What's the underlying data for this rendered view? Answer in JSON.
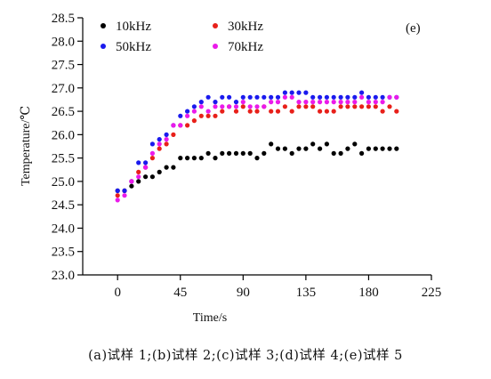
{
  "chart_data": {
    "type": "scatter",
    "panel_label": "(e)",
    "xlabel": "Time/s",
    "ylabel": "Temperature/℃",
    "xlim": [
      -25,
      225
    ],
    "ylim": [
      23.0,
      28.5
    ],
    "xticks": [
      0,
      45,
      90,
      135,
      180,
      225
    ],
    "yticks": [
      23.0,
      23.5,
      24.0,
      24.5,
      25.0,
      25.5,
      26.0,
      26.5,
      27.0,
      27.5,
      28.0,
      28.5
    ],
    "ytick_labels": [
      "23.0",
      "23.5",
      "24.0",
      "24.5",
      "25.0",
      "25.5",
      "26.0",
      "26.5",
      "27.0",
      "27.5",
      "28.0",
      "28.5"
    ],
    "legend_position": "top-left",
    "grid": false,
    "x": [
      0,
      5,
      10,
      15,
      20,
      25,
      30,
      35,
      40,
      45,
      50,
      55,
      60,
      65,
      70,
      75,
      80,
      85,
      90,
      95,
      100,
      105,
      110,
      115,
      120,
      125,
      130,
      135,
      140,
      145,
      150,
      155,
      160,
      165,
      170,
      175,
      180,
      185,
      190,
      195,
      200
    ],
    "series": [
      {
        "name": "10kHz",
        "color": "#000000",
        "values": [
          24.8,
          24.8,
          24.9,
          25.0,
          25.1,
          25.1,
          25.2,
          25.3,
          25.3,
          25.5,
          25.5,
          25.5,
          25.5,
          25.6,
          25.5,
          25.6,
          25.6,
          25.6,
          25.6,
          25.6,
          25.5,
          25.6,
          25.8,
          25.7,
          25.7,
          25.6,
          25.7,
          25.7,
          25.8,
          25.7,
          25.8,
          25.6,
          25.6,
          25.7,
          25.8,
          25.6,
          25.7,
          25.7,
          25.7,
          25.7,
          25.7
        ]
      },
      {
        "name": "30kHz",
        "color": "#e8201a",
        "values": [
          24.7,
          24.8,
          25.0,
          25.2,
          25.3,
          25.5,
          25.7,
          25.8,
          26.0,
          26.2,
          26.2,
          26.3,
          26.4,
          26.4,
          26.4,
          26.5,
          26.6,
          26.5,
          26.6,
          26.5,
          26.5,
          26.6,
          26.5,
          26.5,
          26.6,
          26.5,
          26.6,
          26.6,
          26.6,
          26.5,
          26.5,
          26.5,
          26.6,
          26.6,
          26.6,
          26.6,
          26.6,
          26.6,
          26.5,
          26.6,
          26.5
        ]
      },
      {
        "name": "50kHz",
        "color": "#1a1aee",
        "values": [
          24.8,
          24.8,
          25.0,
          25.4,
          25.4,
          25.8,
          25.9,
          26.0,
          26.2,
          26.4,
          26.5,
          26.6,
          26.7,
          26.8,
          26.7,
          26.8,
          26.8,
          26.7,
          26.8,
          26.8,
          26.8,
          26.8,
          26.8,
          26.8,
          26.9,
          26.9,
          26.9,
          26.9,
          26.8,
          26.8,
          26.8,
          26.8,
          26.8,
          26.8,
          26.8,
          26.9,
          26.8,
          26.8,
          26.8,
          26.8,
          26.8
        ]
      },
      {
        "name": "70kHz",
        "color": "#ea1aea",
        "values": [
          24.6,
          24.7,
          25.0,
          25.1,
          25.3,
          25.6,
          25.8,
          25.9,
          26.2,
          26.2,
          26.4,
          26.5,
          26.6,
          26.5,
          26.6,
          26.6,
          26.6,
          26.6,
          26.7,
          26.6,
          26.6,
          26.6,
          26.7,
          26.7,
          26.8,
          26.8,
          26.7,
          26.7,
          26.7,
          26.7,
          26.7,
          26.7,
          26.7,
          26.7,
          26.7,
          26.8,
          26.7,
          26.7,
          26.7,
          26.8,
          26.8
        ]
      }
    ]
  },
  "caption": "(a)试样 1;(b)试样 2;(c)试样 3;(d)试样 4;(e)试样 5"
}
